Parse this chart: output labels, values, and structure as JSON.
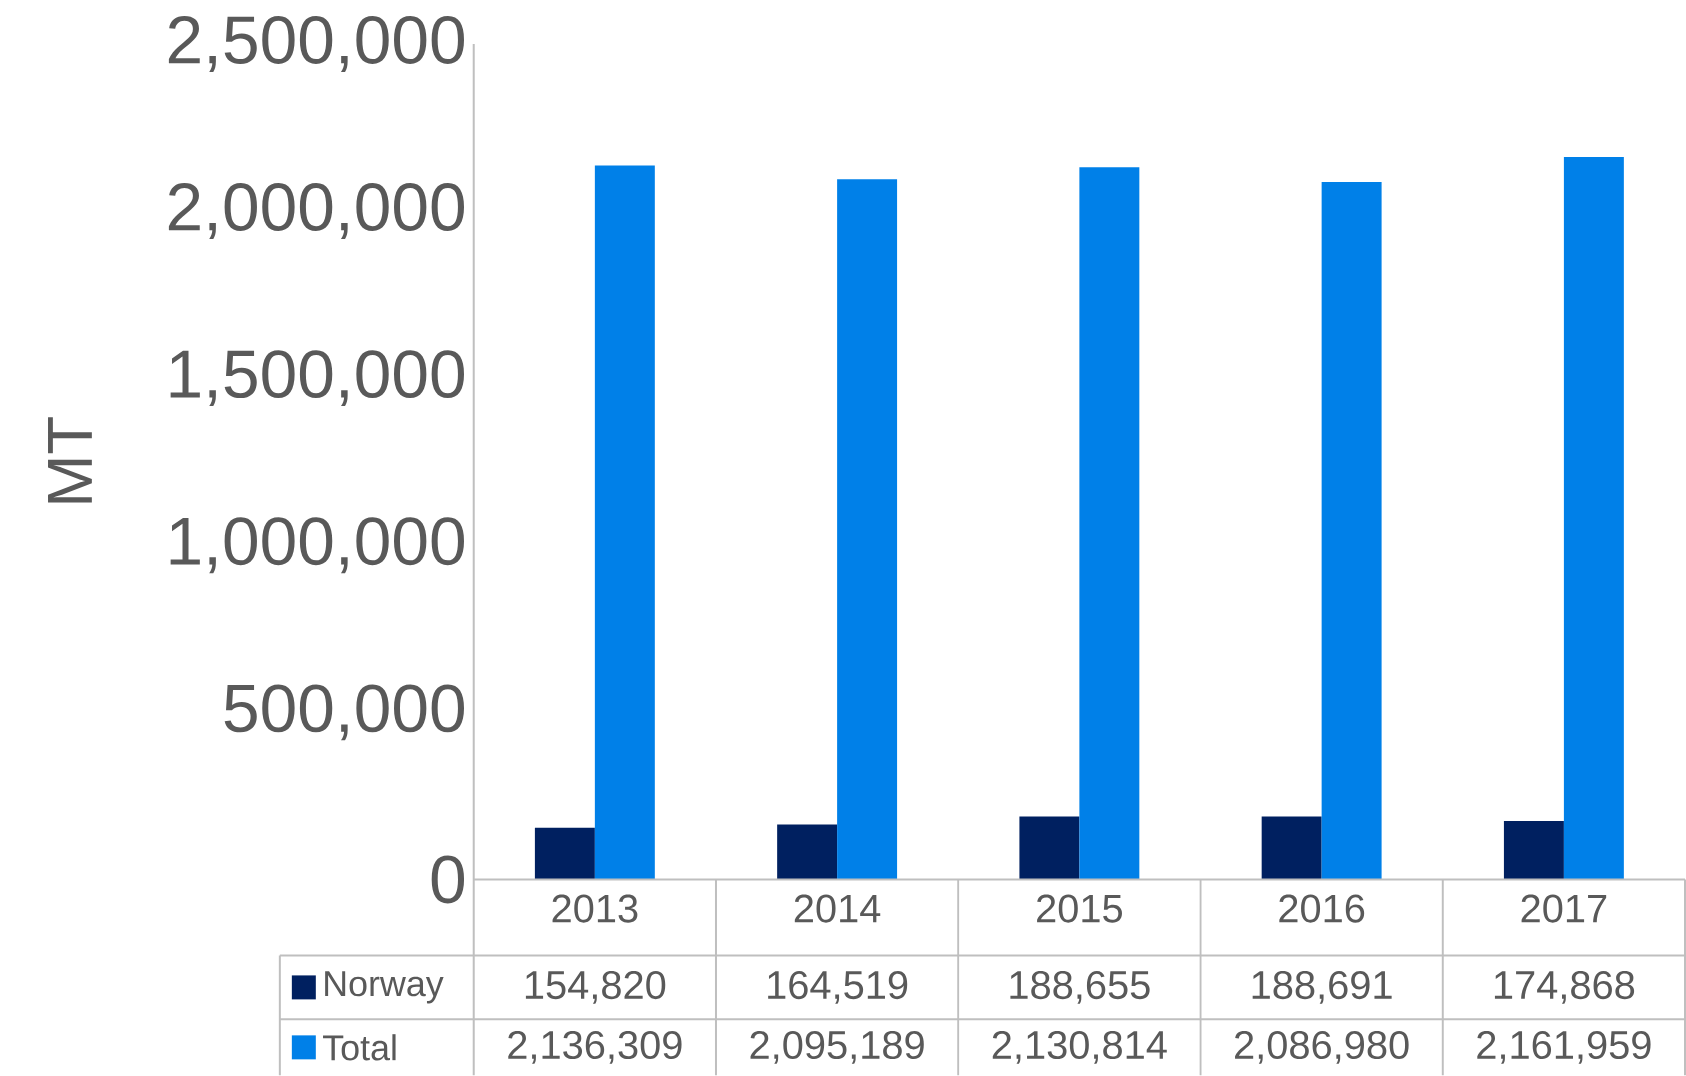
{
  "chart_data": {
    "type": "bar",
    "ylabel": "MT",
    "categories": [
      "2013",
      "2014",
      "2015",
      "2016",
      "2017"
    ],
    "series": [
      {
        "name": "Norway",
        "color": "#002060",
        "values": [
          154820,
          164519,
          188655,
          188691,
          174868
        ],
        "value_labels": [
          "154,820",
          "164,519",
          "188,655",
          "188,691",
          "174,868"
        ]
      },
      {
        "name": "Total",
        "color": "#0080e8",
        "values": [
          2136309,
          2095189,
          2130814,
          2086980,
          2161959
        ],
        "value_labels": [
          "2,136,309",
          "2,095,189",
          "2,130,814",
          "2,086,980",
          "2,161,959"
        ]
      }
    ],
    "ylim": [
      0,
      2500000
    ],
    "yticks": [
      {
        "value": 0,
        "label": "0"
      },
      {
        "value": 500000,
        "label": "500,000"
      },
      {
        "value": 1000000,
        "label": "1,000,000"
      },
      {
        "value": 1500000,
        "label": "1,500,000"
      },
      {
        "value": 2000000,
        "label": "2,000,000"
      },
      {
        "value": 2500000,
        "label": "2,500,000"
      }
    ],
    "grid": false,
    "legend": "bottom"
  }
}
